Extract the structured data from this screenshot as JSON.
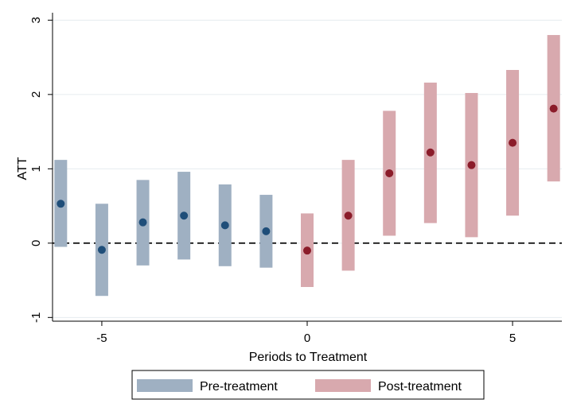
{
  "chart_data": {
    "type": "scatter",
    "title": "",
    "xlabel": "Periods to Treatment",
    "ylabel": "ATT",
    "xlim": [
      -6.2,
      6.2
    ],
    "ylim": [
      -1.05,
      3.1
    ],
    "x_ticks": [
      -5,
      0,
      5
    ],
    "x_tick_labels": [
      "-5",
      "0",
      "5"
    ],
    "y_ticks": [
      -1,
      0,
      1,
      2,
      3
    ],
    "y_tick_labels": [
      "-1",
      "0",
      "1",
      "2",
      "3"
    ],
    "grid": "horizontal",
    "reference_line": {
      "y": 0,
      "style": "dashed"
    },
    "legend_position": "bottom",
    "series": [
      {
        "name": "Pre-treatment",
        "color": "#9fb0c2",
        "point_color": "#1f4e79",
        "points": [
          {
            "x": -6,
            "estimate": 0.53,
            "ci_low": -0.05,
            "ci_high": 1.12
          },
          {
            "x": -5,
            "estimate": -0.09,
            "ci_low": -0.71,
            "ci_high": 0.53
          },
          {
            "x": -4,
            "estimate": 0.28,
            "ci_low": -0.3,
            "ci_high": 0.85
          },
          {
            "x": -3,
            "estimate": 0.37,
            "ci_low": -0.22,
            "ci_high": 0.96
          },
          {
            "x": -2,
            "estimate": 0.24,
            "ci_low": -0.31,
            "ci_high": 0.79
          },
          {
            "x": -1,
            "estimate": 0.16,
            "ci_low": -0.33,
            "ci_high": 0.65
          }
        ]
      },
      {
        "name": "Post-treatment",
        "color": "#d8a9ae",
        "point_color": "#8b1c2a",
        "points": [
          {
            "x": 0,
            "estimate": -0.1,
            "ci_low": -0.59,
            "ci_high": 0.4
          },
          {
            "x": 1,
            "estimate": 0.37,
            "ci_low": -0.37,
            "ci_high": 1.12
          },
          {
            "x": 2,
            "estimate": 0.94,
            "ci_low": 0.1,
            "ci_high": 1.78
          },
          {
            "x": 3,
            "estimate": 1.22,
            "ci_low": 0.27,
            "ci_high": 2.16
          },
          {
            "x": 4,
            "estimate": 1.05,
            "ci_low": 0.08,
            "ci_high": 2.02
          },
          {
            "x": 5,
            "estimate": 1.35,
            "ci_low": 0.37,
            "ci_high": 2.33
          },
          {
            "x": 6,
            "estimate": 1.81,
            "ci_low": 0.83,
            "ci_high": 2.8
          }
        ]
      }
    ],
    "legend": [
      "Pre-treatment",
      "Post-treatment"
    ]
  }
}
